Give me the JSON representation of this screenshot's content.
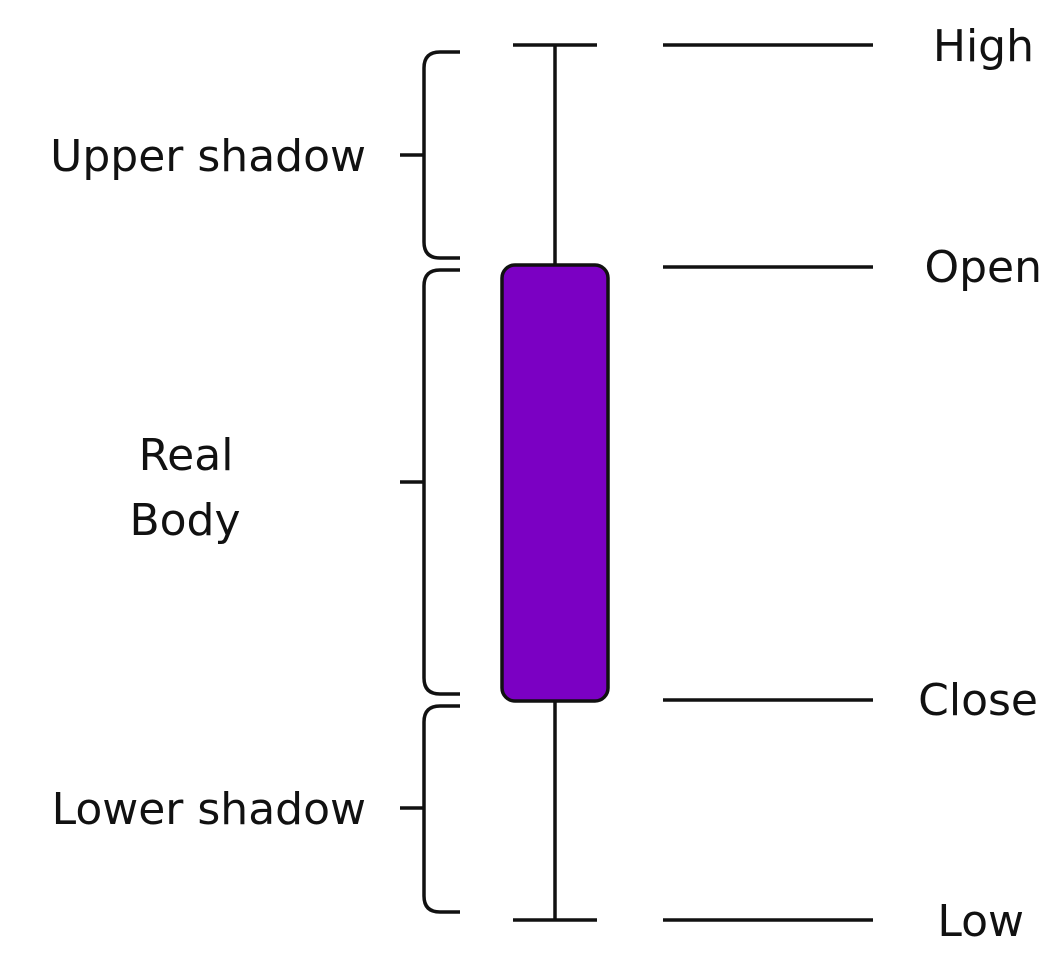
{
  "colors": {
    "body_fill": "#7B00C3",
    "stroke": "#111111",
    "background": "#FFFFFF"
  },
  "price_labels": {
    "high": "High",
    "open": "Open",
    "close": "Close",
    "low": "Low"
  },
  "section_labels": {
    "upper_shadow": "Upper shadow",
    "real_body_line1": "Real",
    "real_body_line2": "Body",
    "lower_shadow": "Lower shadow"
  }
}
